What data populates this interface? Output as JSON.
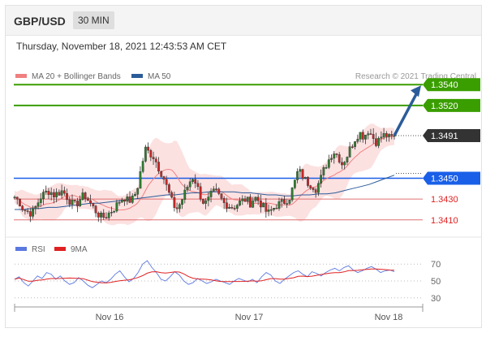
{
  "header": {
    "pair": "GBP/USD",
    "timeframe": "30 MIN"
  },
  "timestamp": "Thursday, November 18, 2021 12:43:53 AM CET",
  "legend": {
    "items": [
      {
        "label": "MA 20 + Bollinger Bands",
        "color": "#f08080"
      },
      {
        "label": "MA 50",
        "color": "#2b5c9a"
      }
    ],
    "credit": "Research © 2021 Trading Central"
  },
  "rsi_legend": {
    "items": [
      {
        "label": "RSI",
        "color": "#5b78e0"
      },
      {
        "label": "9MA",
        "color": "#e02020"
      }
    ]
  },
  "chart_data": [
    {
      "type": "candlestick",
      "title": "GBP/USD",
      "timeframe": "30 MIN",
      "ylim": [
        1.3395,
        1.3555
      ],
      "x_ticks": [
        "Nov 16",
        "Nov 17",
        "Nov 18"
      ],
      "levels": [
        {
          "value": 1.354,
          "label": "1.3540",
          "kind": "resistance",
          "color": "#3a9e00"
        },
        {
          "value": 1.352,
          "label": "1.3520",
          "kind": "resistance",
          "color": "#3a9e00"
        },
        {
          "value": 1.3491,
          "label": "1.3491",
          "kind": "current",
          "color": "#333333"
        },
        {
          "value": 1.345,
          "label": "1.3450",
          "kind": "pivot",
          "color": "#1a5fe8"
        },
        {
          "value": 1.343,
          "label": "1.3430",
          "kind": "support",
          "color": "#e02020"
        },
        {
          "value": 1.341,
          "label": "1.3410",
          "kind": "support",
          "color": "#e02020"
        }
      ],
      "price_path": [
        1.3432,
        1.3428,
        1.342,
        1.3418,
        1.3416,
        1.3424,
        1.3432,
        1.3436,
        1.3438,
        1.3434,
        1.3436,
        1.3438,
        1.3432,
        1.3426,
        1.3424,
        1.343,
        1.3434,
        1.3428,
        1.3422,
        1.3416,
        1.3412,
        1.3414,
        1.3418,
        1.3422,
        1.3428,
        1.3432,
        1.3428,
        1.343,
        1.3438,
        1.346,
        1.3478,
        1.3474,
        1.347,
        1.346,
        1.3452,
        1.344,
        1.3428,
        1.342,
        1.3426,
        1.3436,
        1.3446,
        1.3452,
        1.344,
        1.3428,
        1.3426,
        1.3434,
        1.3438,
        1.3432,
        1.3426,
        1.3424,
        1.3422,
        1.3425,
        1.3428,
        1.343,
        1.3426,
        1.3432,
        1.3428,
        1.3422,
        1.3416,
        1.342,
        1.3424,
        1.3426,
        1.3428,
        1.3432,
        1.3444,
        1.3458,
        1.3452,
        1.3446,
        1.3444,
        1.344,
        1.3448,
        1.346,
        1.3468,
        1.3476,
        1.3472,
        1.3464,
        1.347,
        1.348,
        1.3488,
        1.3494,
        1.349,
        1.3496,
        1.349,
        1.3484,
        1.349,
        1.3492,
        1.3488,
        1.3491
      ],
      "ma50_path": [
        1.342,
        1.342,
        1.3421,
        1.3421,
        1.3422,
        1.3422,
        1.3423,
        1.3424,
        1.3425,
        1.3426,
        1.3426,
        1.3427,
        1.3428,
        1.3429,
        1.343,
        1.3431,
        1.3432,
        1.3433,
        1.3434,
        1.3434,
        1.3435,
        1.3436,
        1.3436,
        1.3437,
        1.3437,
        1.3437,
        1.3437,
        1.3436,
        1.3436,
        1.3435,
        1.3434,
        1.3434,
        1.3433,
        1.3433,
        1.3434,
        1.3434,
        1.3435,
        1.3435,
        1.3436,
        1.3438,
        1.344,
        1.3442,
        1.3444,
        1.3447,
        1.345,
        1.3453
      ],
      "forecast_arrow": {
        "from": 1.3491,
        "to": 1.354
      },
      "bollinger_band_width": 0.001
    },
    {
      "type": "line",
      "title": "RSI",
      "series": [
        {
          "name": "RSI",
          "color": "#5b78e0"
        },
        {
          "name": "9MA",
          "color": "#e02020"
        }
      ],
      "yticks": [
        70,
        50,
        30
      ],
      "ylim": [
        25,
        75
      ],
      "rsi_values": [
        52,
        55,
        48,
        44,
        50,
        56,
        53,
        60,
        58,
        52,
        56,
        50,
        46,
        48,
        54,
        50,
        45,
        42,
        46,
        50,
        48,
        52,
        58,
        62,
        55,
        49,
        53,
        60,
        70,
        74,
        66,
        60,
        52,
        50,
        55,
        61,
        57,
        50,
        46,
        48,
        53,
        50,
        47,
        49,
        52,
        50,
        48,
        46,
        50,
        53,
        51,
        49,
        52,
        48,
        55,
        60,
        57,
        50,
        47,
        52,
        56,
        60,
        62,
        58,
        55,
        61,
        59,
        56,
        60,
        63,
        65,
        62,
        66,
        68,
        63,
        60,
        62,
        65,
        67,
        64,
        60,
        62,
        63,
        61
      ]
    }
  ]
}
